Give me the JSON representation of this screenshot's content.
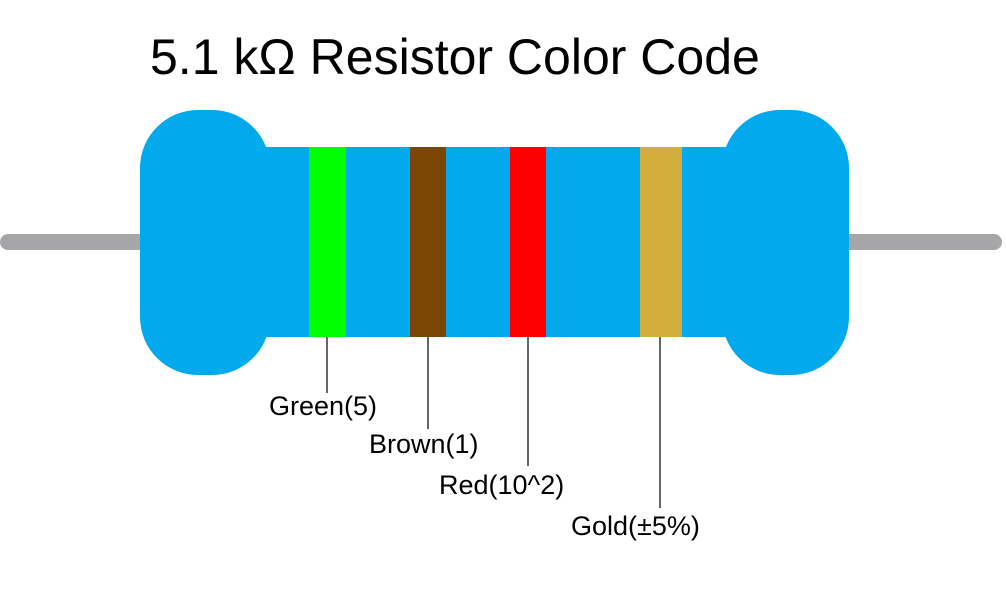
{
  "title": "5.1 kΩ Resistor Color Code",
  "resistor": {
    "body_color": "#03a9ed",
    "lead_color": "#a6a6a8",
    "leader_line_color": "#000000"
  },
  "bands": [
    {
      "name": "band-green",
      "color": "#00ff00",
      "label": "Green(5)"
    },
    {
      "name": "band-brown",
      "color": "#7b4502",
      "label": "Brown(1)"
    },
    {
      "name": "band-red",
      "color": "#ff0000",
      "label": "Red(10^2)"
    },
    {
      "name": "band-gold",
      "color": "#d4ae3a",
      "label": "Gold(±5%)"
    }
  ]
}
